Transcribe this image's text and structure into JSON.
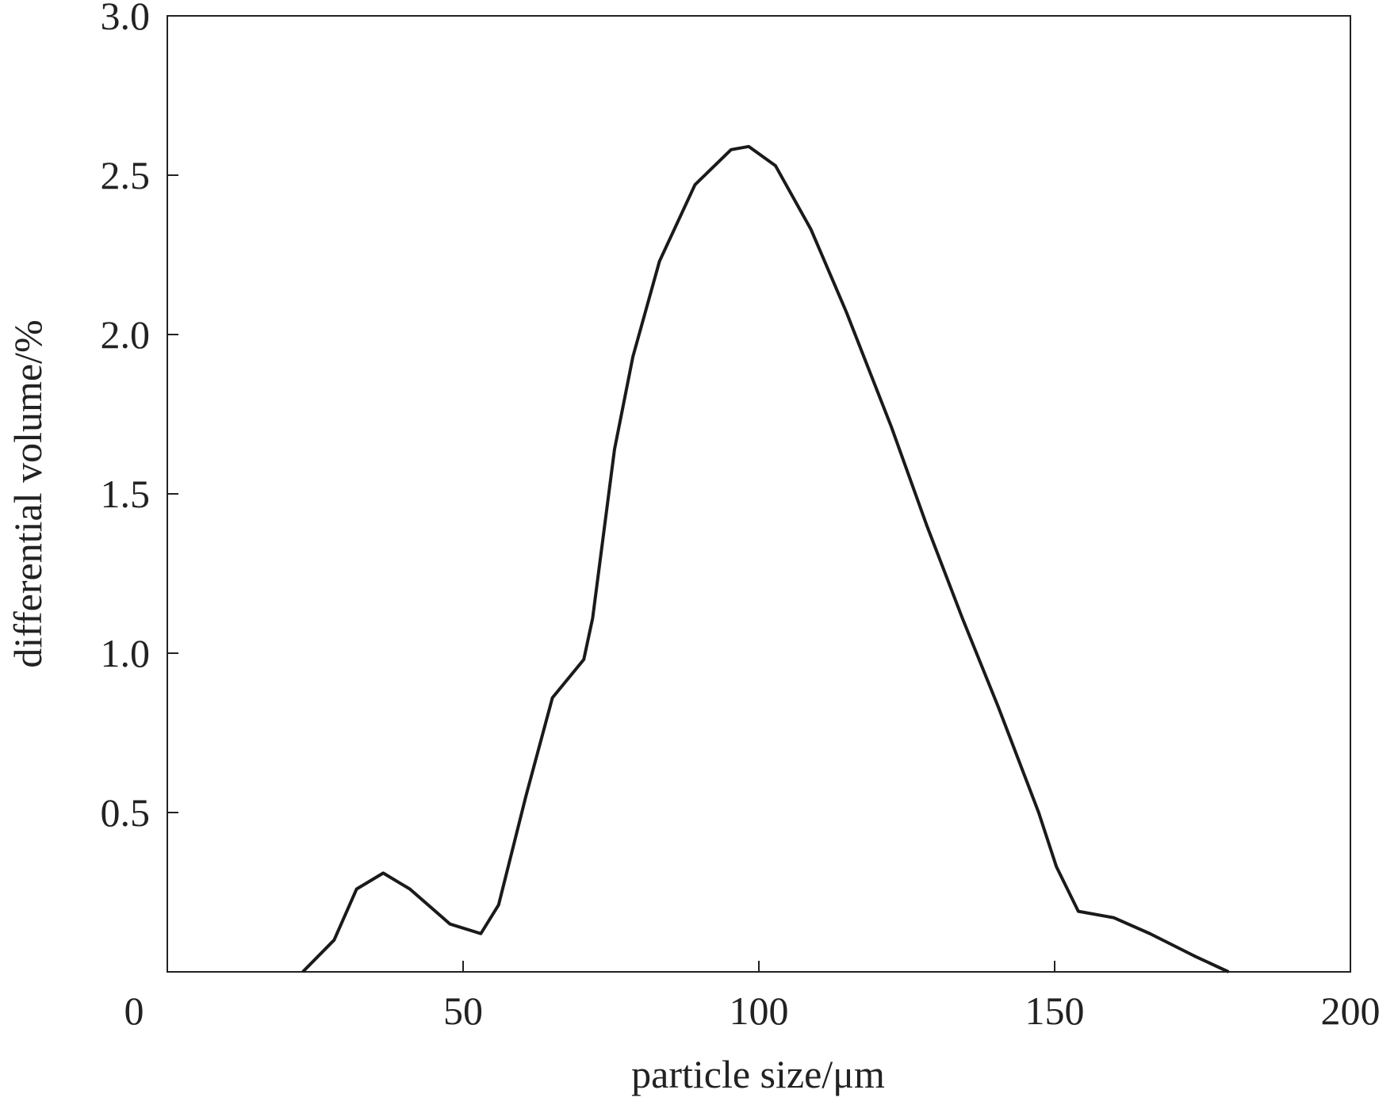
{
  "chart_data": {
    "type": "line",
    "x_label": "particle size/μm",
    "y_label": "differential volume/%",
    "x": [
      22.9,
      28.2,
      32,
      36.5,
      41,
      47.8,
      53,
      56,
      60.6,
      65.1,
      70.4,
      71.9,
      75.6,
      78.7,
      83.2,
      89.2,
      95.3,
      98.3,
      102.8,
      108.8,
      114.8,
      122.4,
      128.4,
      134.4,
      140.5,
      147.3,
      150.3,
      154,
      160,
      166.1,
      173.6,
      179.4
    ],
    "series": [
      {
        "color": "#1a1a1a",
        "values": [
          0,
          0.1,
          0.26,
          0.31,
          0.26,
          0.15,
          0.12,
          0.21,
          0.55,
          0.86,
          0.98,
          1.11,
          1.64,
          1.93,
          2.23,
          2.47,
          2.58,
          2.59,
          2.53,
          2.33,
          2.07,
          1.71,
          1.4,
          1.11,
          0.83,
          0.5,
          0.33,
          0.19,
          0.17,
          0.12,
          0.05,
          0
        ]
      }
    ],
    "xlim": [
      0,
      200
    ],
    "xticks": [
      0,
      50,
      100,
      150,
      200
    ],
    "ylim": [
      0,
      3
    ],
    "yticks": [
      0.5,
      {
        "value": 1,
        "label": "1.0"
      },
      1.5,
      {
        "value": 2,
        "label": "2.0"
      },
      2.5,
      {
        "value": 3,
        "label": "3.0"
      }
    ]
  }
}
